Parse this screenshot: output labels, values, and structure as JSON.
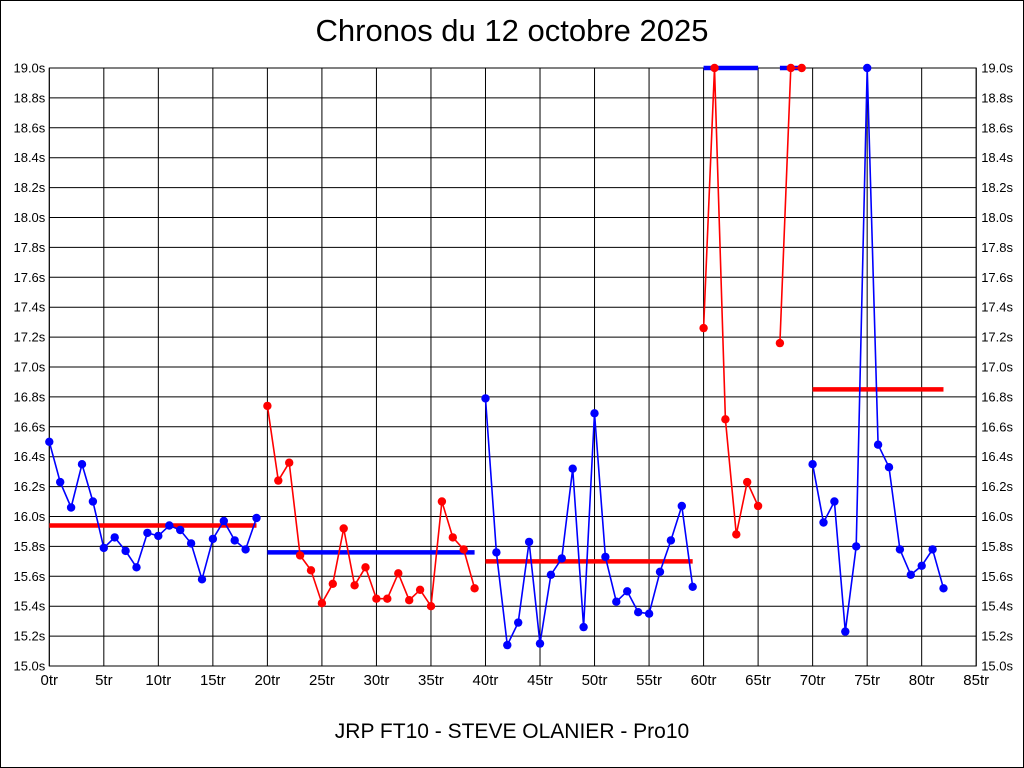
{
  "chart_data": {
    "type": "line",
    "title": "Chronos du 12 octobre 2025",
    "subtitle": "JRP FT10 - STEVE OLANIER - Pro10",
    "x_unit": "tr",
    "y_unit": "s",
    "xlim": [
      0,
      85
    ],
    "ylim": [
      15.0,
      19.0
    ],
    "x_tick_step": 5,
    "y_tick_step": 0.2,
    "grid": true,
    "legend_position": "none",
    "colors": {
      "blue": "#0000ff",
      "red": "#ff0000"
    },
    "x_tick_labels": [
      "0tr",
      "5tr",
      "10tr",
      "15tr",
      "20tr",
      "25tr",
      "30tr",
      "35tr",
      "40tr",
      "45tr",
      "50tr",
      "55tr",
      "60tr",
      "65tr",
      "70tr",
      "75tr",
      "80tr",
      "85tr"
    ],
    "y_tick_labels": [
      "19.0s",
      "18.8s",
      "18.6s",
      "18.4s",
      "18.2s",
      "18.0s",
      "17.8s",
      "17.6s",
      "17.4s",
      "17.2s",
      "17.0s",
      "16.8s",
      "16.6s",
      "16.4s",
      "16.2s",
      "16.0s",
      "15.8s",
      "15.6s",
      "15.4s",
      "15.2s",
      "15.0s"
    ],
    "runs": [
      {
        "name": "run-1",
        "color": "blue",
        "avg_color": "red",
        "start_tr": 0,
        "values": [
          16.5,
          16.23,
          16.06,
          16.35,
          16.1,
          15.79,
          15.86,
          15.77,
          15.66,
          15.89,
          15.87,
          15.94,
          15.91,
          15.82,
          15.58,
          15.85,
          15.97,
          15.84,
          15.78,
          15.99
        ],
        "average": 15.94
      },
      {
        "name": "run-2",
        "color": "red",
        "avg_color": "blue",
        "start_tr": 20,
        "values": [
          16.74,
          16.24,
          16.36,
          15.74,
          15.64,
          15.42,
          15.55,
          15.92,
          15.54,
          15.66,
          15.45,
          15.45,
          15.62,
          15.44,
          15.51,
          15.4,
          16.1,
          15.86,
          15.78,
          15.52
        ],
        "average": 15.76
      },
      {
        "name": "run-3",
        "color": "blue",
        "avg_color": "red",
        "start_tr": 40,
        "values": [
          16.79,
          15.76,
          15.14,
          15.29,
          15.83,
          15.15,
          15.61,
          15.72,
          16.32,
          15.26,
          16.69,
          15.73,
          15.43,
          15.5,
          15.36,
          15.35,
          15.63,
          15.84,
          16.07,
          15.53
        ],
        "average": 15.7
      },
      {
        "name": "run-4",
        "color": "red",
        "avg_color": "blue",
        "start_tr": 60,
        "values": [
          17.26,
          19.0,
          16.65,
          15.88,
          16.23,
          16.07
        ],
        "average": 19.0
      },
      {
        "name": "run-5",
        "color": "red",
        "avg_color": "blue",
        "start_tr": 67,
        "values": [
          17.16,
          19.0,
          19.0
        ],
        "average": 19.0
      },
      {
        "name": "run-6",
        "color": "blue",
        "avg_color": "red",
        "start_tr": 70,
        "values": [
          16.35,
          15.96,
          16.1,
          15.23,
          15.8,
          19.0,
          16.48,
          16.33,
          15.78,
          15.61,
          15.67,
          15.78,
          15.52
        ],
        "average": 16.85
      }
    ]
  }
}
